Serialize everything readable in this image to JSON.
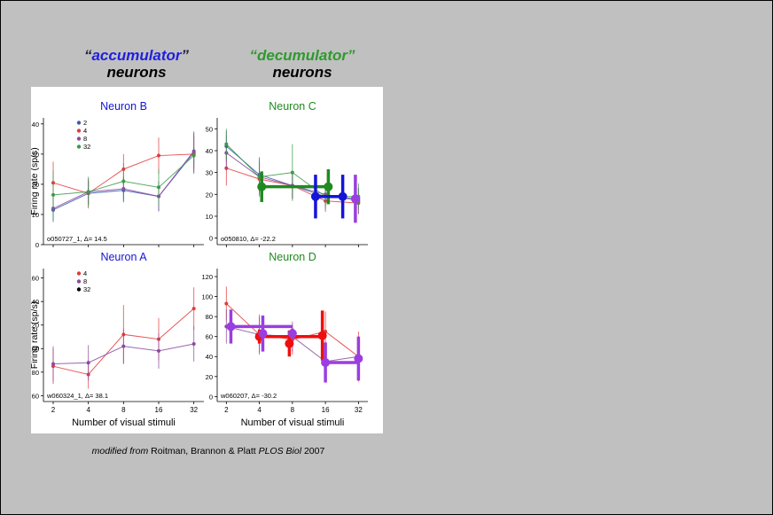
{
  "slide": {
    "headers": {
      "accumulator": {
        "quote_open": "“",
        "word": "accumulator",
        "quote_close": "”",
        "line2": "neurons",
        "color": "#1f1fe0"
      },
      "decumulator": {
        "quote_open": "“",
        "word": "decumulator",
        "quote_close": "”",
        "line2": "neurons",
        "color": "#2e9a2e"
      }
    },
    "caption": {
      "prefix": "modified from",
      "authors": " Roitman, Brannon & Platt ",
      "journal": "PLOS Biol",
      "year": " 2007"
    }
  },
  "shared_axes": {
    "ylabel": "Firing rate (sp/s)",
    "xlabel": "Number of visual stimuli",
    "x_ticks": [
      "2",
      "4",
      "8",
      "16",
      "32"
    ],
    "x_values": [
      2,
      4,
      8,
      16,
      32
    ],
    "x_scale": "log2"
  },
  "colors": {
    "n2": "#3a5bb0",
    "n4": "#e23b3b",
    "n8": "#8a4aa0",
    "n32": "#3a9a4a",
    "title_blue": "#1414d8",
    "title_green": "#1f8a1f"
  },
  "chart_data": [
    {
      "type": "line",
      "title": "Neuron B",
      "note": "o050727_1, Δ= 14.5",
      "ylim": [
        0,
        42
      ],
      "yticks": [
        0,
        10,
        20,
        30,
        40
      ],
      "legend": [
        "2",
        "4",
        "8",
        "32"
      ],
      "series": [
        {
          "name": "2",
          "color": "#3a5bb0",
          "x": [
            2,
            4,
            8,
            16,
            32
          ],
          "y": [
            11.5,
            17,
            18,
            16,
            30.5
          ],
          "err": [
            4,
            4,
            4,
            5,
            7
          ]
        },
        {
          "name": "4",
          "color": "#e23b3b",
          "x": [
            2,
            4,
            8,
            16,
            32
          ],
          "y": [
            20.5,
            17,
            25,
            29.5,
            30
          ],
          "err": [
            7,
            5,
            5,
            6,
            6
          ]
        },
        {
          "name": "8",
          "color": "#8a4aa0",
          "x": [
            2,
            4,
            8,
            16,
            32
          ],
          "y": [
            12,
            17.5,
            18.5,
            16,
            31
          ],
          "err": [
            4,
            4,
            4,
            5,
            6
          ]
        },
        {
          "name": "32",
          "color": "#3a9a4a",
          "x": [
            2,
            4,
            8,
            16,
            32
          ],
          "y": [
            16.5,
            17.5,
            21,
            19,
            29.5
          ],
          "err": [
            8,
            5,
            6,
            6,
            3
          ]
        }
      ]
    },
    {
      "type": "line",
      "title": "Neuron C",
      "note": "o050810, Δ= -22.2",
      "ylim": [
        -3,
        55
      ],
      "yticks": [
        0,
        10,
        20,
        30,
        40,
        50
      ],
      "series": [
        {
          "name": "2",
          "color": "#3a5bb0",
          "x": [
            2,
            4,
            8,
            16,
            32
          ],
          "y": [
            42,
            29,
            24,
            19,
            18
          ],
          "err": [
            7,
            8,
            6,
            5,
            5
          ]
        },
        {
          "name": "4",
          "color": "#e23b3b",
          "x": [
            2,
            4,
            8,
            16,
            32
          ],
          "y": [
            32,
            27,
            24,
            17,
            16
          ],
          "err": [
            8,
            8,
            6,
            5,
            5
          ]
        },
        {
          "name": "8",
          "color": "#8a4aa0",
          "x": [
            2,
            4,
            8,
            16,
            32
          ],
          "y": [
            39,
            28,
            24,
            20,
            17
          ],
          "err": [
            8,
            7,
            6,
            5,
            6
          ]
        },
        {
          "name": "32",
          "color": "#3a9a4a",
          "x": [
            2,
            4,
            8,
            16,
            32
          ],
          "y": [
            43,
            28,
            30,
            19,
            19
          ],
          "err": [
            7,
            8,
            13,
            6,
            6
          ]
        }
      ],
      "bold_points": [
        {
          "color": "#1f8a1f",
          "x": 4.2,
          "y": 23.5,
          "err": 7,
          "xerr": [
            4.2,
            17
          ]
        },
        {
          "color": "#1f8a1f",
          "x": 17,
          "y": 23.5,
          "err": 8
        },
        {
          "color": "#1414d8",
          "x": 13,
          "y": 19,
          "err": 10,
          "xerr": [
            13,
            23
          ]
        },
        {
          "color": "#1414d8",
          "x": 23,
          "y": 19,
          "err": 10
        },
        {
          "color": "#9a3ee0",
          "x": 30,
          "y": 18,
          "err": 11
        }
      ]
    },
    {
      "type": "line",
      "title": "Neuron A",
      "note": "w060324_1, Δ= 38.1",
      "ylim": [
        55,
        168
      ],
      "yticks": [
        60,
        80,
        100,
        120,
        140,
        160
      ],
      "legend": [
        "4",
        "8",
        "32"
      ],
      "series": [
        {
          "name": "4",
          "color": "#e23b3b",
          "x": [
            2,
            4,
            8,
            16,
            32
          ],
          "y": [
            85,
            78,
            112,
            108,
            134
          ],
          "err": [
            15,
            12,
            25,
            18,
            18
          ]
        },
        {
          "name": "8",
          "color": "#8a4aa0",
          "x": [
            2,
            4,
            8,
            16,
            32
          ],
          "y": [
            87,
            88,
            102,
            98,
            104
          ],
          "err": [
            15,
            15,
            15,
            15,
            15
          ]
        }
      ]
    },
    {
      "type": "line",
      "title": "Neuron D",
      "note": "w060207, Δ= -30.2",
      "ylim": [
        -5,
        128
      ],
      "yticks": [
        0,
        20,
        40,
        60,
        80,
        100,
        120
      ],
      "series": [
        {
          "name": "4",
          "color": "#e23b3b",
          "x": [
            2,
            4,
            8,
            16,
            32
          ],
          "y": [
            93,
            62,
            57,
            65,
            40
          ],
          "err": [
            17,
            18,
            15,
            20,
            25
          ]
        },
        {
          "name": "8",
          "color": "#8a4aa0",
          "x": [
            2,
            4,
            8,
            16,
            32
          ],
          "y": [
            70,
            62,
            60,
            35,
            40
          ],
          "err": [
            17,
            20,
            15,
            20,
            20
          ]
        }
      ],
      "bold_points": [
        {
          "color": "#ee0f0f",
          "x": 4,
          "y": 60,
          "err": 7,
          "xerr": [
            4,
            16
          ]
        },
        {
          "color": "#ee0f0f",
          "x": 7.5,
          "y": 53,
          "err": 13
        },
        {
          "color": "#ee0f0f",
          "x": 15,
          "y": 61,
          "err": 25
        },
        {
          "color": "#9a3ee0",
          "x": 2.2,
          "y": 70,
          "err": 17,
          "xerr": [
            2.2,
            8
          ]
        },
        {
          "color": "#9a3ee0",
          "x": 4.3,
          "y": 63,
          "err": 18
        },
        {
          "color": "#9a3ee0",
          "x": 8,
          "y": 63,
          "err": 5
        },
        {
          "color": "#9a3ee0",
          "x": 16,
          "y": 34,
          "err": 20,
          "xerr": [
            16,
            32
          ]
        },
        {
          "color": "#9a3ee0",
          "x": 32,
          "y": 38,
          "err": 22
        }
      ]
    }
  ]
}
